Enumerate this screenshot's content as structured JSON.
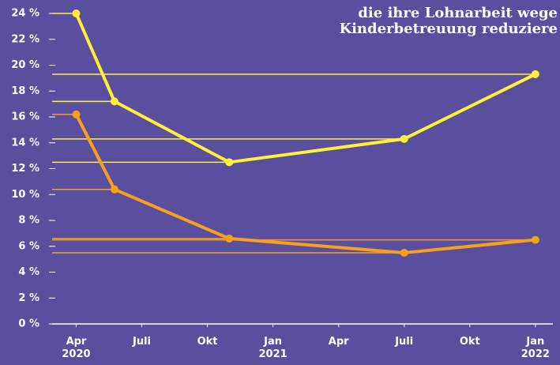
{
  "chart_data": {
    "type": "line",
    "title_lines": [
      "die ihre Lohnarbeit wege",
      "Kinderbetreuung reduziere"
    ],
    "x": [
      0,
      1.75,
      7,
      15,
      21
    ],
    "series": [
      {
        "color": "#fff03a",
        "values": [
          24,
          17.2,
          12.5,
          14.3,
          19.3
        ]
      },
      {
        "color": "#f7a11a",
        "values": [
          16.2,
          10.4,
          6.6,
          5.5,
          6.5
        ]
      }
    ],
    "xlim": [
      -1.1,
      21.8
    ],
    "xticks": [
      {
        "value": 0,
        "label": "Apr 2020"
      },
      {
        "value": 3,
        "label": "Juli"
      },
      {
        "value": 6,
        "label": "Okt"
      },
      {
        "value": 9,
        "label": "Jan 2021"
      },
      {
        "value": 12,
        "label": "Apr"
      },
      {
        "value": 15,
        "label": "Juli"
      },
      {
        "value": 18,
        "label": "Okt"
      },
      {
        "value": 21,
        "label": "Jan 2022"
      }
    ],
    "ylim": [
      0,
      24
    ],
    "yticks": [
      {
        "value": 0,
        "label": "0 %"
      },
      {
        "value": 2,
        "label": "2 %"
      },
      {
        "value": 4,
        "label": "4 %"
      },
      {
        "value": 6,
        "label": "6 %"
      },
      {
        "value": 8,
        "label": "8 %"
      },
      {
        "value": 10,
        "label": "10 %"
      },
      {
        "value": 12,
        "label": "12 %"
      },
      {
        "value": 14,
        "label": "14 %"
      },
      {
        "value": 16,
        "label": "16 %"
      },
      {
        "value": 18,
        "label": "18 %"
      },
      {
        "value": 20,
        "label": "20 %"
      },
      {
        "value": 22,
        "label": "22 %"
      },
      {
        "value": 24,
        "label": "24 %"
      }
    ]
  }
}
